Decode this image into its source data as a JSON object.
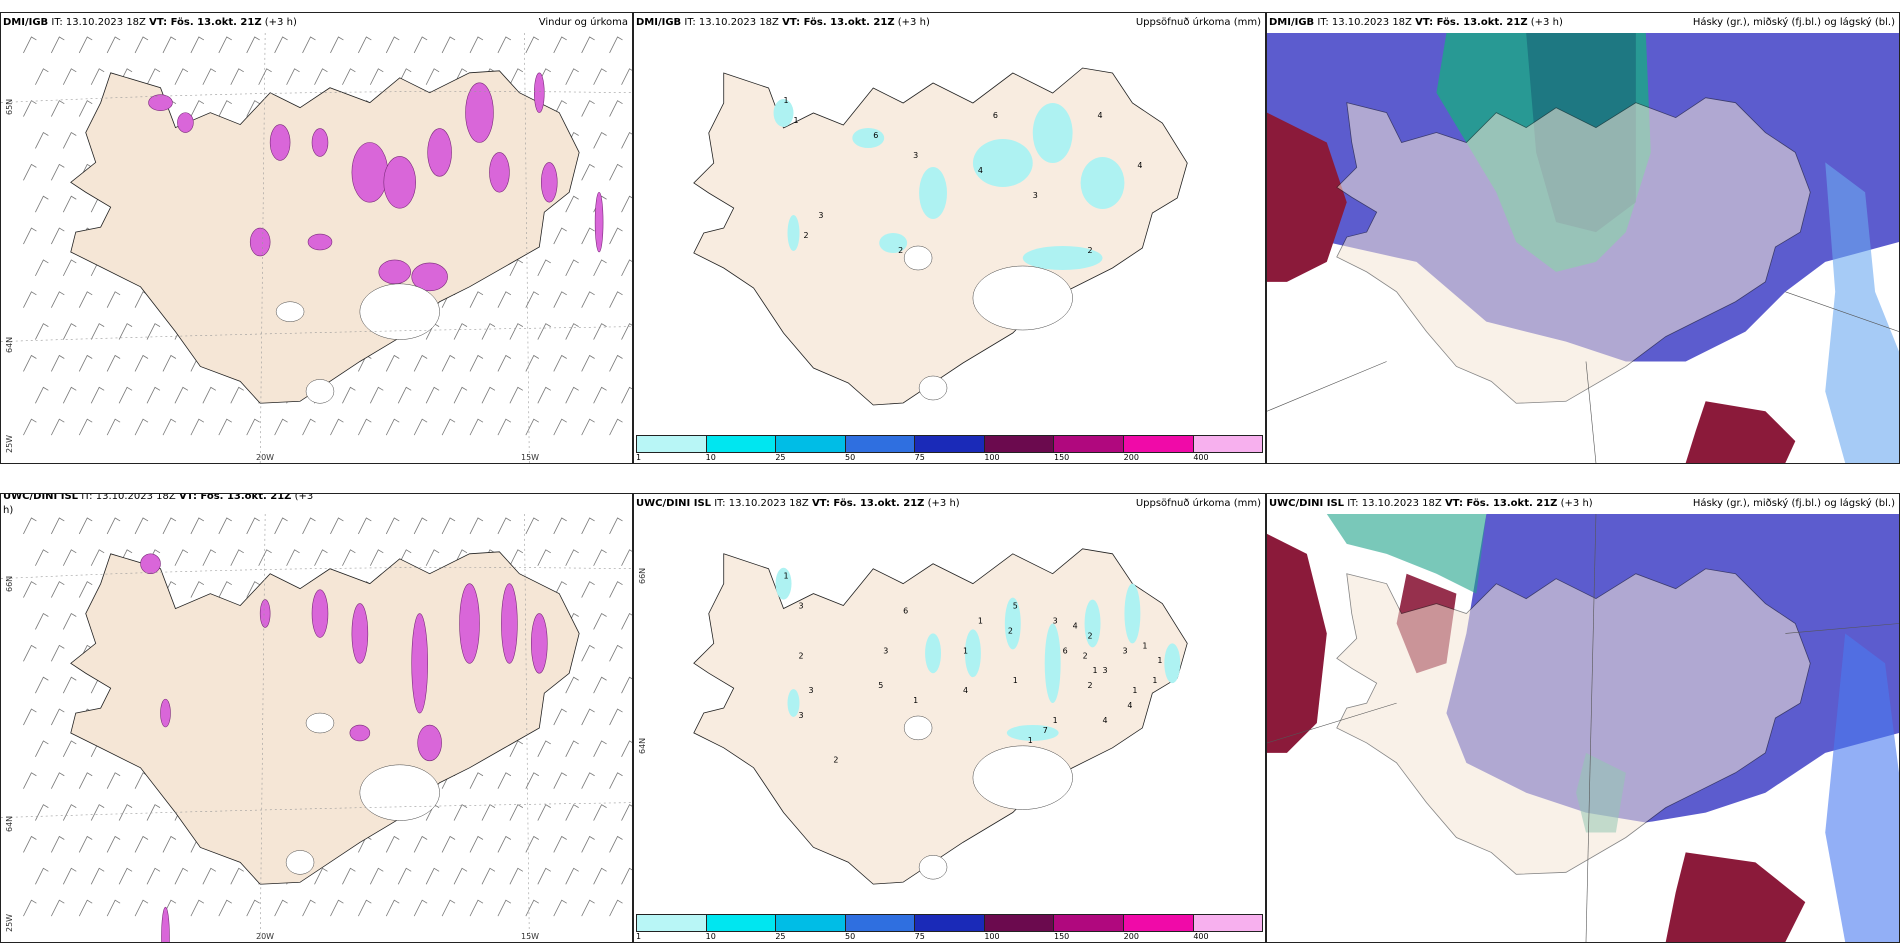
{
  "colors": {
    "land": "#f5e6d6",
    "coast": "#222222",
    "precip_magenta": "#d966d9",
    "precip_cyan": "#aef2f2",
    "cloud_high_green": "#1fa38a",
    "cloud_mid_blue": "#4a4ac9",
    "cloud_low_red": "#8b1a3a"
  },
  "panels": {
    "top_left": {
      "source": "DMI/IGB",
      "it": "IT: 13.10.2023 18Z",
      "vt": "VT: Fös. 13.okt. 21Z",
      "lead": "(+3 h)",
      "title": "Vindur og úrkoma",
      "lat_labels": [
        "65N",
        "64N",
        "25W"
      ],
      "lon_labels": [
        "20W",
        "15W"
      ]
    },
    "top_mid": {
      "source": "DMI/IGB",
      "it": "IT: 13.10.2023 18Z",
      "vt": "VT: Fös. 13.okt. 21Z",
      "lead": "(+3 h)",
      "title": "Uppsöfnuð úrkoma (mm)",
      "values": [
        "1",
        "1",
        "6",
        "3",
        "3",
        "2",
        "2",
        "6",
        "4",
        "4",
        "4",
        "3",
        "2"
      ]
    },
    "top_right": {
      "source": "DMI/IGB",
      "it": "IT: 13.10.2023 18Z",
      "vt": "VT: Fös. 13.okt. 21Z",
      "lead": "(+3 h)",
      "title": "Hásky (gr.), miðský (fj.bl.) og lágský (bl.)"
    },
    "bot_left": {
      "source": "UWC/DINI ISL",
      "it": "IT: 13.10.2023 18Z",
      "vt": "VT: Fös. 13.okt. 21Z",
      "lead": "(+3",
      "lead2": "h)",
      "title": "",
      "lat_labels": [
        "66N",
        "64N",
        "25W"
      ],
      "lon_labels": [
        "20W",
        "15W"
      ]
    },
    "bot_mid": {
      "source": "UWC/DINI ISL",
      "it": "IT: 13.10.2023 18Z",
      "vt": "VT: Fös. 13.okt. 21Z",
      "lead": "(+3 h)",
      "title": "Uppsöfnuð úrkoma (mm)",
      "lat_labels": [
        "66N",
        "64N"
      ],
      "values": [
        "1",
        "3",
        "2",
        "3",
        "3",
        "5",
        "3",
        "1",
        "6",
        "1",
        "1",
        "4",
        "5",
        "2",
        "1",
        "3",
        "4",
        "2",
        "6",
        "2",
        "1",
        "2",
        "3",
        "3",
        "1",
        "1",
        "1",
        "1",
        "4",
        "4",
        "1",
        "7",
        "1",
        "2"
      ]
    },
    "bot_right": {
      "source": "UWC/DINI ISL",
      "it": "IT: 13.10.2023 18Z",
      "vt": "VT: Fös. 13.okt. 21Z",
      "lead": "(+3 h)",
      "title": "Hásky (gr.), miðský (fj.bl.) og lágský (bl.)"
    }
  },
  "colorbar": {
    "labels": [
      "1",
      "10",
      "25",
      "50",
      "75",
      "100",
      "150",
      "200",
      "400"
    ],
    "colors": [
      "#b8f6f6",
      "#00e6f0",
      "#00bde6",
      "#2f6fe0",
      "#1a2ab8",
      "#6b0a4e",
      "#b0087e",
      "#f00aa8",
      "#f7b0ee"
    ]
  }
}
